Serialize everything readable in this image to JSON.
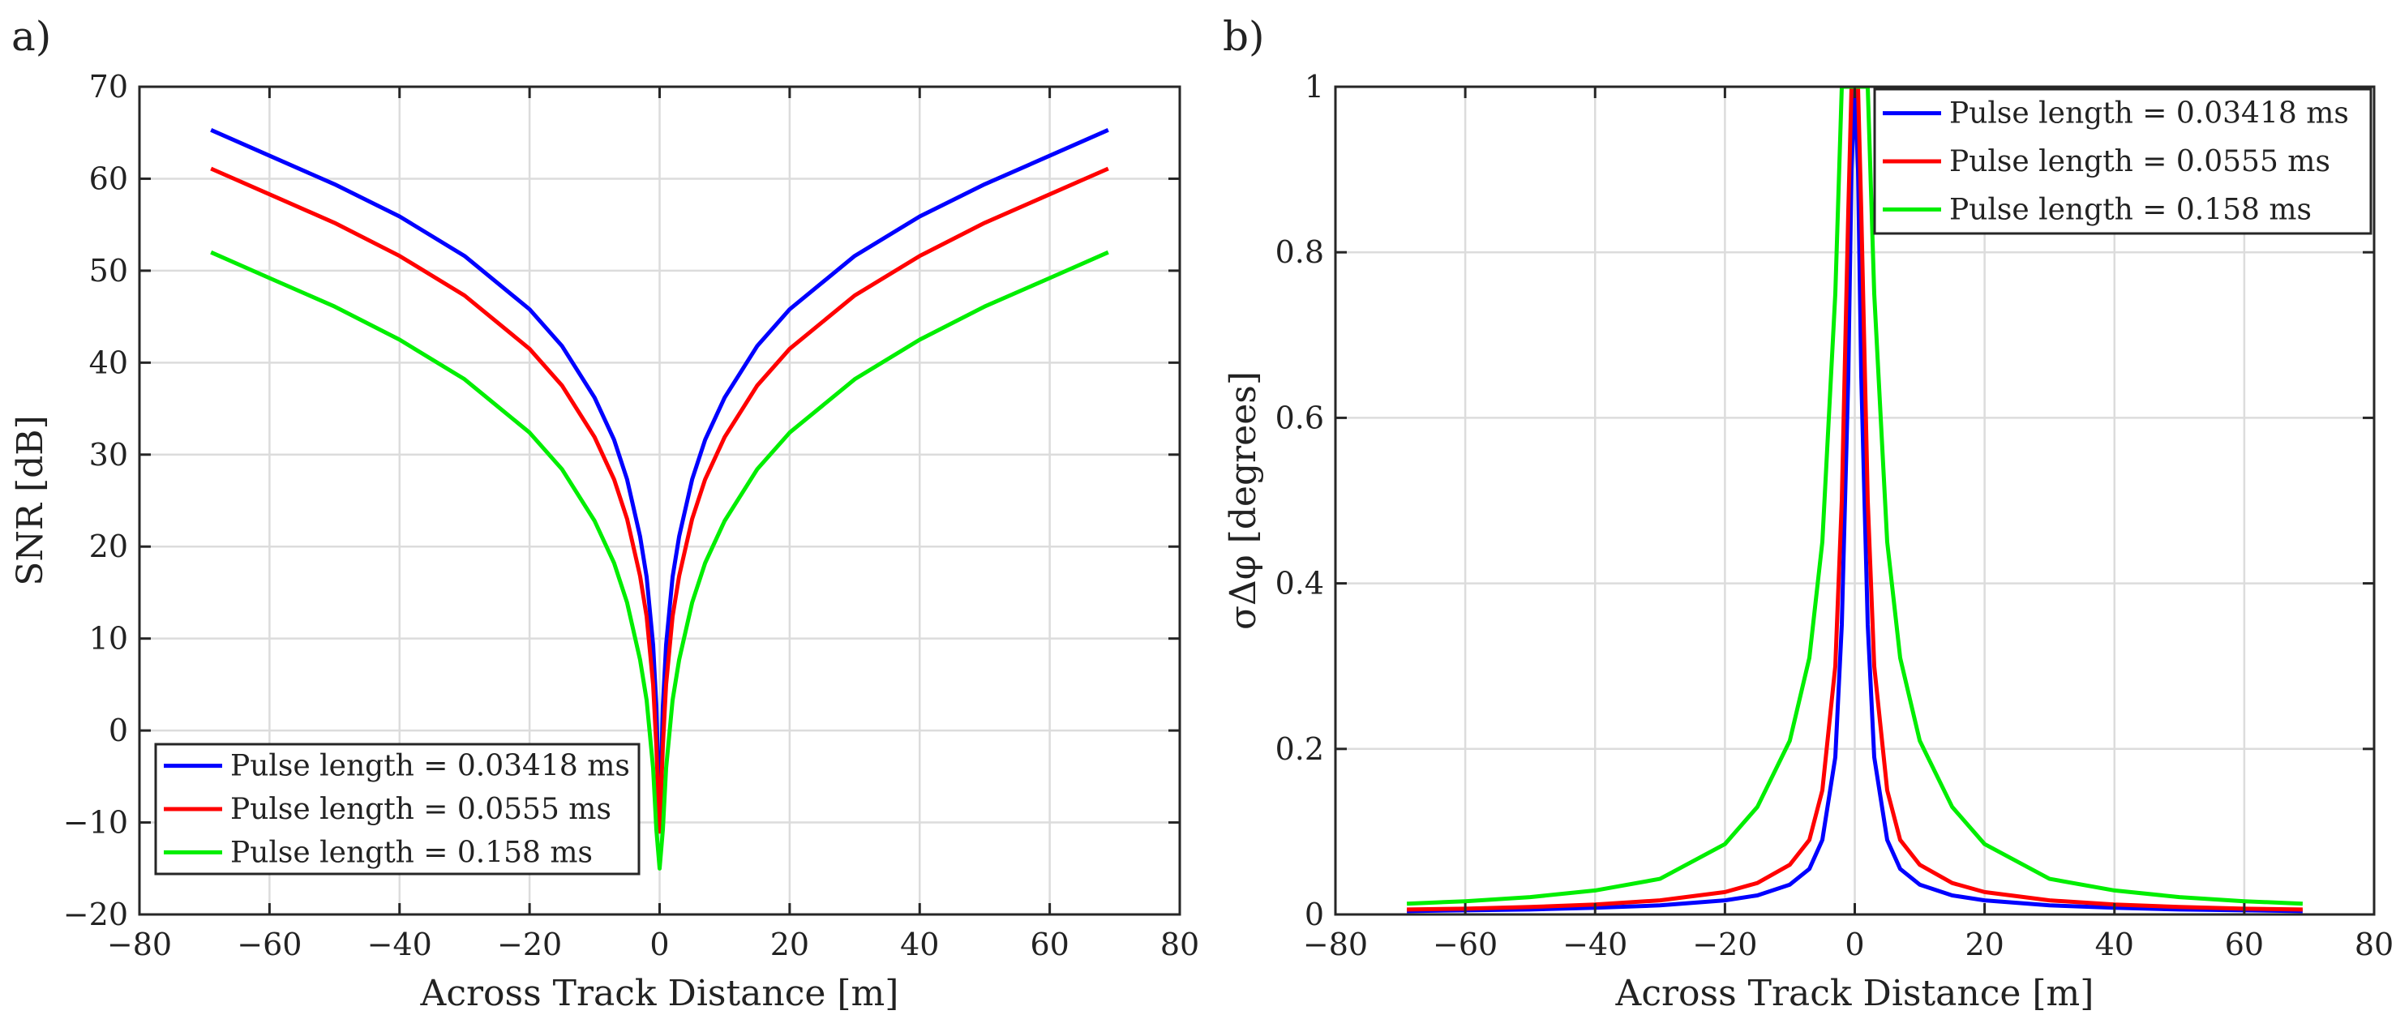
{
  "chart_data": [
    {
      "type": "line",
      "panel_label": "a)",
      "xlabel": "Across Track Distance [m]",
      "ylabel": "SNR [dB]",
      "xlim": [
        -80,
        80
      ],
      "ylim": [
        -20,
        70
      ],
      "xticks": [
        -80,
        -60,
        -40,
        -20,
        0,
        20,
        40,
        60,
        80
      ],
      "yticks": [
        -20,
        -10,
        0,
        10,
        20,
        30,
        40,
        50,
        60,
        70
      ],
      "grid": true,
      "legend_position": "bottom-left",
      "x": [
        -69,
        -60,
        -50,
        -40,
        -30,
        -20,
        -15,
        -10,
        -7,
        -5,
        -3,
        -2,
        -1,
        -0.5,
        0,
        0.5,
        1,
        2,
        3,
        5,
        7,
        10,
        15,
        20,
        30,
        40,
        50,
        60,
        69
      ],
      "series": [
        {
          "name": "Pulse length = 0.03418 ms",
          "color": "#0000ff",
          "values": [
            65.3,
            62.5,
            59.4,
            55.9,
            51.6,
            45.8,
            41.8,
            36.2,
            31.6,
            27.3,
            21.1,
            16.7,
            9.3,
            2.6,
            -10.5,
            2.6,
            9.3,
            16.7,
            21.1,
            27.3,
            31.6,
            36.2,
            41.8,
            45.8,
            51.6,
            55.9,
            59.4,
            62.5,
            65.3
          ]
        },
        {
          "name": "Pulse length = 0.0555 ms",
          "color": "#ff0000",
          "values": [
            61.1,
            58.3,
            55.2,
            51.6,
            47.3,
            41.5,
            37.5,
            31.9,
            27.3,
            23.0,
            16.8,
            12.4,
            5.0,
            -1.7,
            -11.0,
            -1.7,
            5.0,
            12.4,
            16.8,
            23.0,
            27.3,
            31.9,
            37.5,
            41.5,
            47.3,
            51.6,
            55.2,
            58.3,
            61.1
          ]
        },
        {
          "name": "Pulse length = 0.158 ms",
          "color": "#00ee00",
          "values": [
            52.0,
            49.2,
            46.1,
            42.5,
            38.2,
            32.4,
            28.4,
            22.8,
            18.2,
            13.9,
            7.7,
            3.3,
            -4.1,
            -10.8,
            -15.0,
            -10.8,
            -4.1,
            3.3,
            7.7,
            13.9,
            18.2,
            22.8,
            28.4,
            32.4,
            38.2,
            42.5,
            46.1,
            49.2,
            52.0
          ]
        }
      ]
    },
    {
      "type": "line",
      "panel_label": "b)",
      "xlabel": "Across Track Distance [m]",
      "ylabel": "σΔφ [degrees]",
      "xlim": [
        -80,
        80
      ],
      "ylim": [
        0,
        1
      ],
      "xticks": [
        -80,
        -60,
        -40,
        -20,
        0,
        20,
        40,
        60,
        80
      ],
      "yticks": [
        0,
        0.2,
        0.4,
        0.6,
        0.8,
        1
      ],
      "grid": true,
      "legend_position": "top-right",
      "x": [
        -69,
        -60,
        -50,
        -40,
        -30,
        -20,
        -15,
        -10,
        -7,
        -5,
        -3,
        -2,
        -1,
        -0.5,
        0,
        0.5,
        1,
        2,
        3,
        5,
        7,
        10,
        15,
        20,
        30,
        40,
        50,
        60,
        69
      ],
      "series": [
        {
          "name": "Pulse length = 0.03418 ms",
          "color": "#0000ff",
          "values": [
            0.004,
            0.005,
            0.006,
            0.008,
            0.011,
            0.017,
            0.023,
            0.036,
            0.055,
            0.09,
            0.19,
            0.35,
            0.65,
            0.9,
            1.0,
            0.9,
            0.65,
            0.35,
            0.19,
            0.09,
            0.055,
            0.036,
            0.023,
            0.017,
            0.011,
            0.008,
            0.006,
            0.005,
            0.004
          ]
        },
        {
          "name": "Pulse length = 0.0555 ms",
          "color": "#ff0000",
          "values": [
            0.006,
            0.007,
            0.009,
            0.012,
            0.017,
            0.027,
            0.038,
            0.06,
            0.09,
            0.15,
            0.3,
            0.5,
            0.85,
            1.0,
            1.0,
            1.0,
            0.85,
            0.5,
            0.3,
            0.15,
            0.09,
            0.06,
            0.038,
            0.027,
            0.017,
            0.012,
            0.009,
            0.007,
            0.006
          ]
        },
        {
          "name": "Pulse length = 0.158 ms",
          "color": "#00ee00",
          "values": [
            0.013,
            0.016,
            0.021,
            0.029,
            0.043,
            0.085,
            0.13,
            0.21,
            0.31,
            0.45,
            0.75,
            1.0,
            1.0,
            1.0,
            1.0,
            1.0,
            1.0,
            1.0,
            0.75,
            0.45,
            0.31,
            0.21,
            0.13,
            0.085,
            0.043,
            0.029,
            0.021,
            0.016,
            0.013
          ]
        }
      ]
    }
  ]
}
